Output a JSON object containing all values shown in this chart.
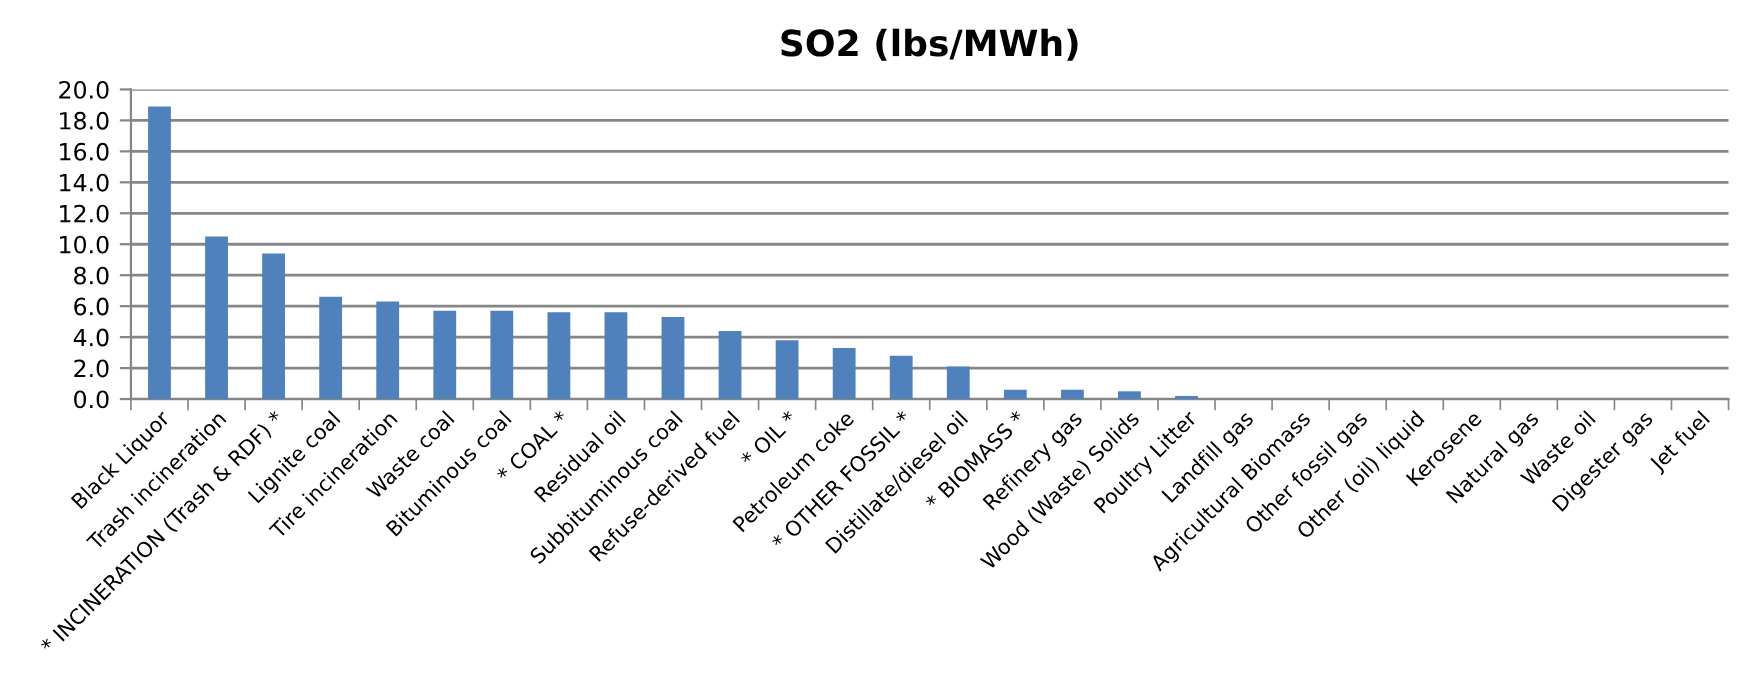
{
  "chart_data": {
    "type": "bar",
    "title": "SO2 (lbs/MWh)",
    "categories": [
      "Black Liquor",
      "Trash incineration",
      "* INCINERATION (Trash & RDF) *",
      "Lignite coal",
      "Tire incineration",
      "Waste coal",
      "Bituminous coal",
      "* COAL *",
      "Residual oil",
      "Subbituminous coal",
      "Refuse-derived fuel",
      "* OIL *",
      "Petroleum coke",
      "* OTHER FOSSIL *",
      "Distillate/diesel oil",
      "* BIOMASS *",
      "Refinery gas",
      "Wood (Waste) Solids",
      "Poultry Litter",
      "Landfill gas",
      "Agricultural Biomass",
      "Other fossil gas",
      "Other (oil) liquid",
      "Kerosene",
      "Natural gas",
      "Waste oil",
      "Digester gas",
      "Jet fuel"
    ],
    "values": [
      18.9,
      10.5,
      9.4,
      6.6,
      6.3,
      5.7,
      5.7,
      5.6,
      5.6,
      5.3,
      4.4,
      3.8,
      3.3,
      2.8,
      2.1,
      0.6,
      0.6,
      0.5,
      0.2,
      0,
      0,
      0,
      0,
      0,
      0,
      0,
      0,
      0
    ],
    "color": "#4f81bd",
    "ylim": [
      0,
      20
    ],
    "yticks": [
      {
        "value": 0,
        "label": "0.0"
      },
      {
        "value": 2,
        "label": "2.0"
      },
      {
        "value": 4,
        "label": "4.0"
      },
      {
        "value": 6,
        "label": "6.0"
      },
      {
        "value": 8,
        "label": "8.0"
      },
      {
        "value": 10,
        "label": "10.0"
      },
      {
        "value": 12,
        "label": "12.0"
      },
      {
        "value": 14,
        "label": "14.0"
      },
      {
        "value": 16,
        "label": "16.0"
      },
      {
        "value": 18,
        "label": "18.0"
      },
      {
        "value": 20,
        "label": "20.0"
      }
    ],
    "grid": "y"
  }
}
